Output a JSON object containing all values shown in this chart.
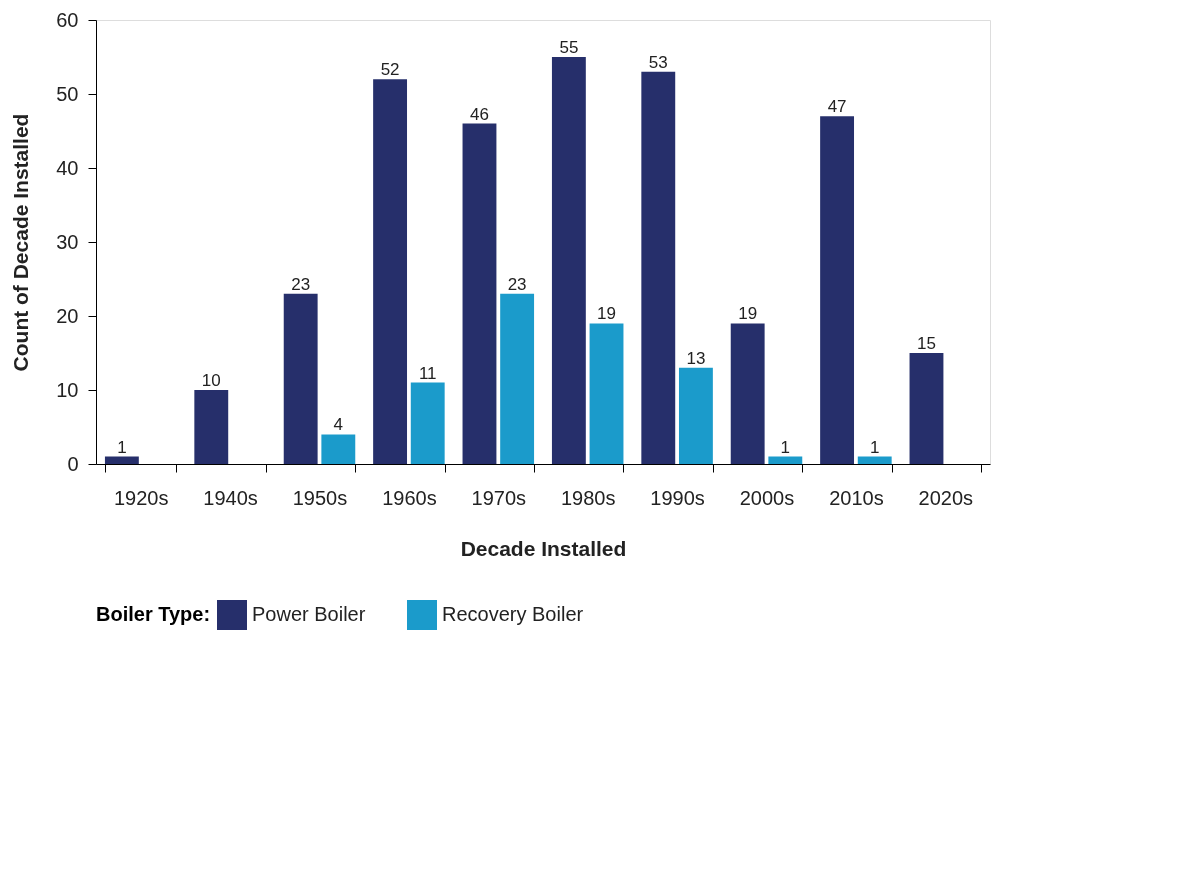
{
  "chart_data": {
    "type": "bar",
    "xlabel": "Decade Installed",
    "ylabel": "Count of Decade Installed",
    "legend_title": "Boiler Type:",
    "categories": [
      "1920s",
      "1940s",
      "1950s",
      "1960s",
      "1970s",
      "1980s",
      "1990s",
      "2000s",
      "2010s",
      "2020s"
    ],
    "series": [
      {
        "name": "Power Boiler",
        "color": "#262f6b",
        "values": [
          1,
          10,
          23,
          52,
          46,
          55,
          53,
          19,
          47,
          15
        ]
      },
      {
        "name": "Recovery Boiler",
        "color": "#1b9bcb",
        "values": [
          null,
          null,
          4,
          11,
          23,
          19,
          13,
          1,
          1,
          null
        ]
      }
    ],
    "ylim": [
      0,
      60
    ],
    "yticks": [
      0,
      10,
      20,
      30,
      40,
      50,
      60
    ],
    "data_labels": true,
    "grid": false,
    "legend": "bottom"
  }
}
